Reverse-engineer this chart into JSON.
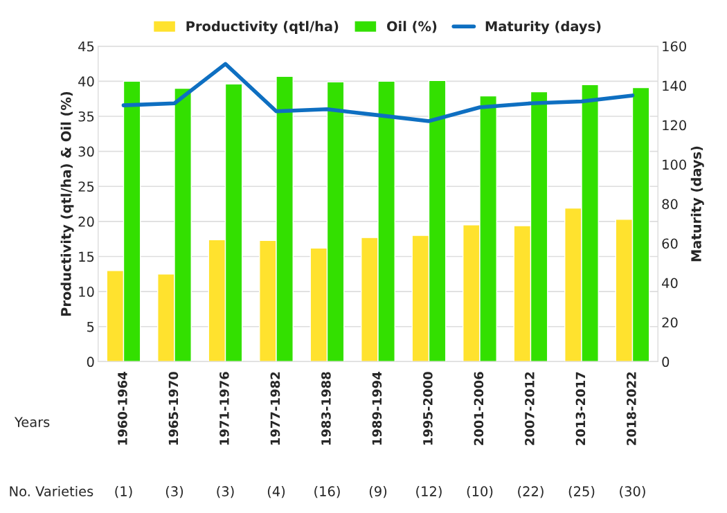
{
  "chart_data": {
    "type": "bar",
    "categories": [
      "1960-1964",
      "1965-1970",
      "1971-1976",
      "1977-1982",
      "1983-1988",
      "1989-1994",
      "1995-2000",
      "2001-2006",
      "2007-2012",
      "2013-2017",
      "2018-2022"
    ],
    "series": [
      {
        "name": "Productivity (qtl/ha)",
        "color": "#ffe22e",
        "values": [
          13,
          12.5,
          17.4,
          17.3,
          16.2,
          17.7,
          18,
          19.5,
          19.4,
          21.9,
          20.3
        ]
      },
      {
        "name": "Oil (%)",
        "color": "#33e000",
        "values": [
          40,
          39,
          39.6,
          40.7,
          39.9,
          40,
          40.1,
          37.9,
          38.5,
          39.5,
          39.1
        ]
      },
      {
        "name": "Maturity (days)",
        "color": "#0e6fc1",
        "type": "line",
        "axis": "y2",
        "values": [
          130,
          131,
          151,
          127,
          128,
          125,
          122,
          129,
          131,
          132,
          135
        ]
      }
    ],
    "xlabel": "Years",
    "ylabel": "Productivity (qtl/ha) & Oil (%)",
    "y2label": "Maturity (days)",
    "ylim": [
      0,
      45
    ],
    "yticks": [
      0,
      5,
      10,
      15,
      20,
      25,
      30,
      35,
      40,
      45
    ],
    "y2lim": [
      0,
      160
    ],
    "y2ticks": [
      0,
      20,
      40,
      60,
      80,
      100,
      120,
      140,
      160
    ],
    "grid": "y",
    "legend": "top",
    "marker": "none",
    "line_style": "solid",
    "annotations": [
      "No. Varieties",
      "(1)",
      "(3)",
      "(3)",
      "(4)",
      "(16)",
      "(9)",
      "(12)",
      "(10)",
      "(22)",
      "(25)",
      "(30)"
    ]
  }
}
